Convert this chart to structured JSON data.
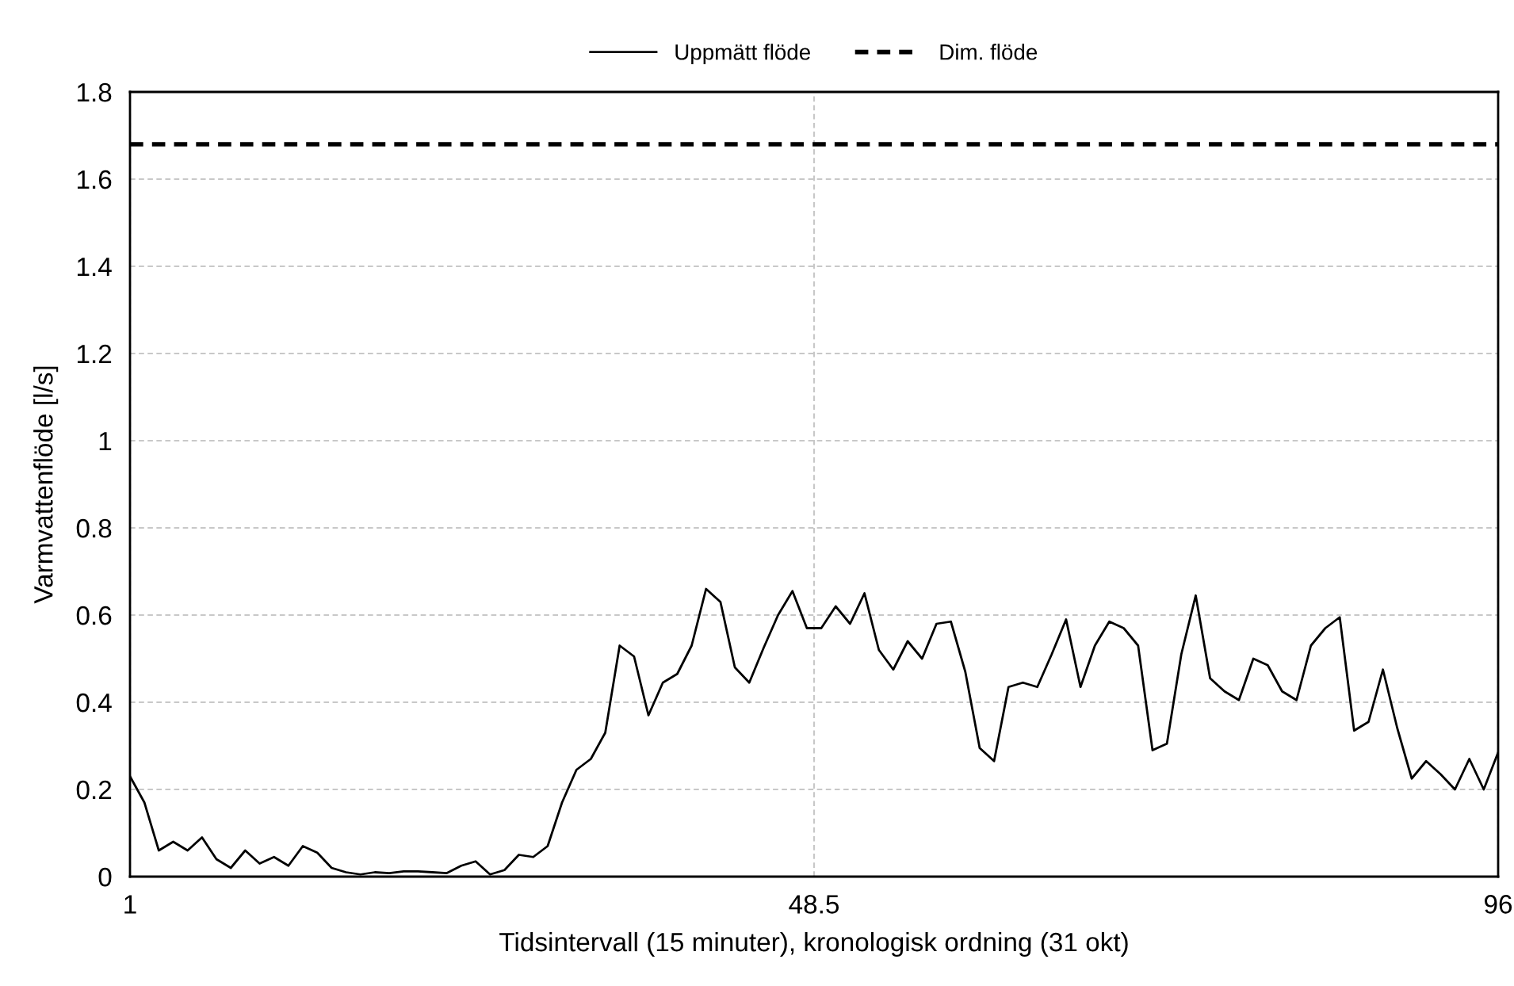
{
  "chart_data": {
    "type": "line",
    "xlabel": "Tidsintervall (15 minuter), kronologisk ordning (31 okt)",
    "ylabel": "Varmvattenflöde [l/s]",
    "xlim": [
      1,
      96
    ],
    "xticks": [
      1,
      48.5,
      96
    ],
    "ylim": [
      0,
      1.8
    ],
    "yticks": [
      0,
      0.2,
      0.4,
      0.6,
      0.8,
      1,
      1.2,
      1.4,
      1.6,
      1.8
    ],
    "grid": true,
    "legend": "top",
    "marker": "none",
    "series": [
      {
        "name": "Uppmätt flöde",
        "color": "#000000",
        "line_style": "solid",
        "x": [
          1,
          2,
          3,
          4,
          5,
          6,
          7,
          8,
          9,
          10,
          11,
          12,
          13,
          14,
          15,
          16,
          17,
          18,
          19,
          20,
          21,
          22,
          23,
          24,
          25,
          26,
          27,
          28,
          29,
          30,
          31,
          32,
          33,
          34,
          35,
          36,
          37,
          38,
          39,
          40,
          41,
          42,
          43,
          44,
          45,
          46,
          47,
          48,
          49,
          50,
          51,
          52,
          53,
          54,
          55,
          56,
          57,
          58,
          59,
          60,
          61,
          62,
          63,
          64,
          65,
          66,
          67,
          68,
          69,
          70,
          71,
          72,
          73,
          74,
          75,
          76,
          77,
          78,
          79,
          80,
          81,
          82,
          83,
          84,
          85,
          86,
          87,
          88,
          89,
          90,
          91,
          92,
          93,
          94,
          95,
          96
        ],
        "values": [
          0.23,
          0.17,
          0.06,
          0.08,
          0.06,
          0.09,
          0.04,
          0.02,
          0.06,
          0.03,
          0.045,
          0.025,
          0.07,
          0.055,
          0.02,
          0.01,
          0.005,
          0.01,
          0.008,
          0.012,
          0.012,
          0.01,
          0.008,
          0.025,
          0.035,
          0.005,
          0.015,
          0.05,
          0.045,
          0.07,
          0.17,
          0.245,
          0.27,
          0.33,
          0.53,
          0.505,
          0.37,
          0.445,
          0.465,
          0.53,
          0.66,
          0.63,
          0.48,
          0.445,
          0.525,
          0.6,
          0.655,
          0.57,
          0.57,
          0.62,
          0.58,
          0.65,
          0.52,
          0.475,
          0.54,
          0.5,
          0.58,
          0.585,
          0.47,
          0.295,
          0.265,
          0.435,
          0.445,
          0.435,
          0.51,
          0.59,
          0.435,
          0.53,
          0.585,
          0.57,
          0.53,
          0.29,
          0.305,
          0.51,
          0.645,
          0.455,
          0.425,
          0.405,
          0.5,
          0.485,
          0.425,
          0.405,
          0.53,
          0.57,
          0.595,
          0.335,
          0.355,
          0.475,
          0.34,
          0.225,
          0.265,
          0.235,
          0.2,
          0.27,
          0.2,
          0.285
        ]
      },
      {
        "name": "Dim. flöde",
        "color": "#000000",
        "line_style": "dashed",
        "x": [
          1,
          96
        ],
        "values": [
          1.68,
          1.68
        ]
      }
    ]
  }
}
